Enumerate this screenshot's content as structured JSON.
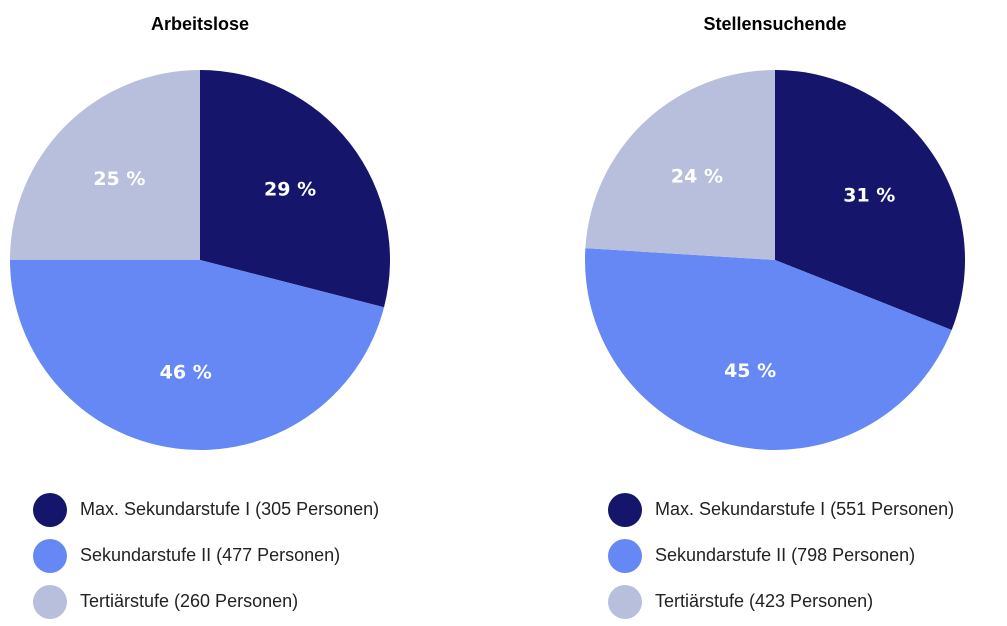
{
  "chart_data": [
    {
      "type": "pie",
      "title": "Arbeitslose",
      "categories": [
        "Max. Sekundarstufe I (305 Personen)",
        "Sekundarstufe II (477 Personen)",
        "Tertiärstufe (260 Personen)"
      ],
      "values": [
        29,
        46,
        25
      ],
      "value_labels": [
        "29 %",
        "46 %",
        "25 %"
      ],
      "colors": [
        "#14156b",
        "#6688f5",
        "#b8bfdc"
      ]
    },
    {
      "type": "pie",
      "title": "Stellensuchende",
      "categories": [
        "Max. Sekundarstufe I (551 Personen)",
        "Sekundarstufe II (798 Personen)",
        "Tertiärstufe (423 Personen)"
      ],
      "values": [
        31,
        45,
        24
      ],
      "value_labels": [
        "31 %",
        "45 %",
        "24 %"
      ],
      "colors": [
        "#14156b",
        "#6688f5",
        "#b8bfdc"
      ]
    }
  ]
}
